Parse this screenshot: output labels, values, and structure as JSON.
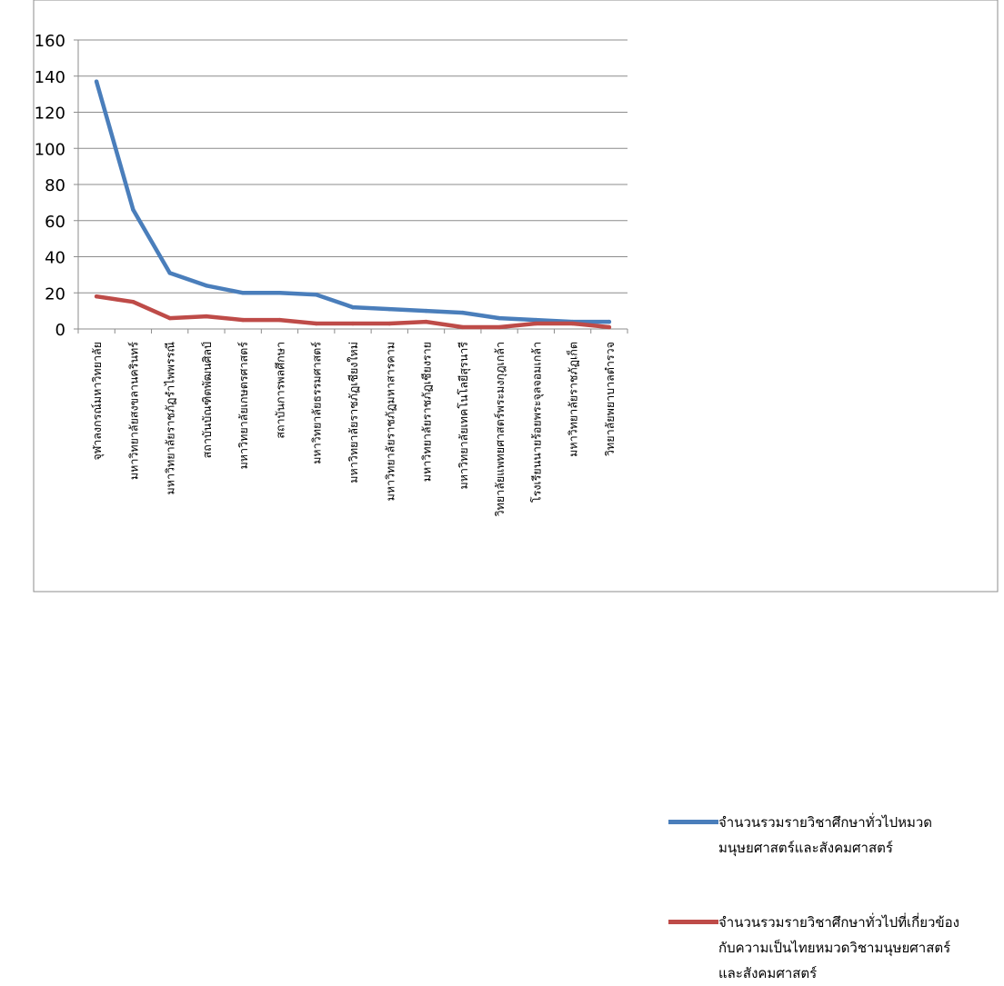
{
  "chart_data": {
    "type": "line",
    "title": "",
    "xlabel": "",
    "ylabel": "",
    "ylim": [
      0,
      160
    ],
    "yticks": [
      0,
      20,
      40,
      60,
      80,
      100,
      120,
      140,
      160
    ],
    "grid": true,
    "legend_position": "right",
    "categories": [
      "จุฬาลงกรณ์มหาวิทยาลัย",
      "มหาวิทยาลัยสงขลานครินทร์",
      "มหาวิทยาลัยราชภัฏรำไพพรรณี",
      "สถาบันบัณฑิตพัฒนศิลป์",
      "มหาวิทยาลัยเกษตรศาสตร์",
      "สถาบันการพลศึกษา",
      "มหาวิทยาลัยธรรมศาสตร์",
      "มหาวิทยาลัยราชภัฏเชียงใหม่",
      "มหาวิทยาลัยราชภัฏมหาสารคาม",
      "มหาวิทยาลัยราชภัฏเชียงราย",
      "มหาวิทยาลัยเทคโนโลยีสุรนารี",
      "วิทยาลัยแพทยศาสตร์พระมงกุฎเกล้า",
      "โรงเรียนนายร้อยพระจุลจอมเกล้า",
      "มหาวิทยาลัยราชภัฏเก็ต",
      "วิทยาลัยพยาบาลตำรวจ"
    ],
    "series": [
      {
        "name": "จำนวนรวมรายวิชาศึกษาทั่วไปหมวด\nมนุษยศาสตร์และสังคมศาสตร์",
        "color": "#4a7ebb",
        "values": [
          137,
          66,
          31,
          24,
          20,
          20,
          19,
          12,
          11,
          10,
          9,
          6,
          5,
          4,
          4
        ]
      },
      {
        "name": "จำนวนรวมรายวิชาศึกษาทั่วไปที่เกี่ยวข้อง\nกับความเป็นไทยหมวดวิชามนุษยศาสตร์\nและสังคมศาสตร์",
        "color": "#be4b48",
        "values": [
          18,
          15,
          6,
          7,
          5,
          5,
          3,
          3,
          3,
          4,
          1,
          1,
          3,
          3,
          1
        ]
      }
    ]
  }
}
